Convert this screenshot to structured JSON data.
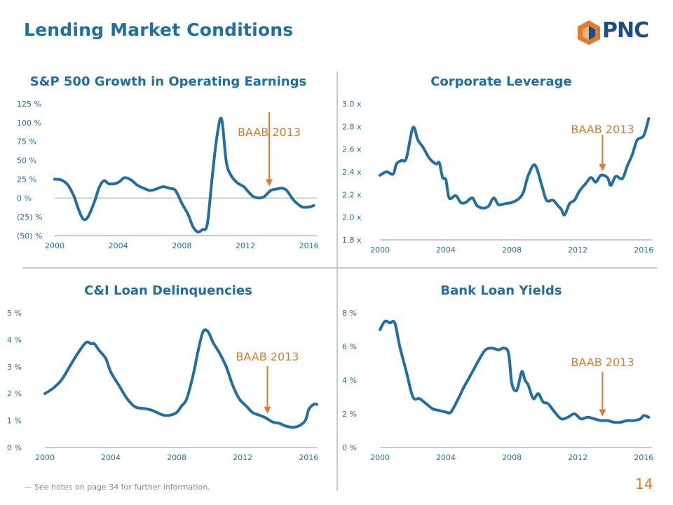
{
  "page": {
    "title": "Lending Market Conditions",
    "logo_text": "PNC",
    "footnote": "See notes on page 34 for further information.",
    "footnote_marker": "—",
    "page_number": "14"
  },
  "colors": {
    "title": "#1f6fa6",
    "line": "#1f6fa6",
    "annotation": "#e07a2c",
    "axis_text": "#1f6fa6"
  },
  "chart_data": [
    {
      "id": "sp500",
      "type": "line",
      "title": "S&P 500 Growth in Operating Earnings",
      "annotation": {
        "label": "BAAB 2013",
        "x": 2013.5
      },
      "x_ticks": [
        2000,
        2004,
        2008,
        2012,
        2016
      ],
      "y_ticks": [
        -50,
        -25,
        0,
        25,
        50,
        75,
        100,
        125
      ],
      "y_tick_labels": [
        "(50) %",
        "(25) %",
        "0 %",
        "25 %",
        "50 %",
        "75 %",
        "100 %",
        "125 %"
      ],
      "xlim": [
        2000,
        2016.5
      ],
      "ylim": [
        -50,
        125
      ],
      "zero_line": true,
      "series": [
        {
          "name": "S&P 500 Growth",
          "points": [
            [
              2000.0,
              25
            ],
            [
              2000.4,
              24
            ],
            [
              2000.8,
              18
            ],
            [
              2001.2,
              3
            ],
            [
              2001.5,
              -15
            ],
            [
              2001.8,
              -28
            ],
            [
              2002.1,
              -25
            ],
            [
              2002.5,
              -5
            ],
            [
              2002.8,
              14
            ],
            [
              2003.1,
              23
            ],
            [
              2003.4,
              19
            ],
            [
              2003.8,
              19
            ],
            [
              2004.1,
              22
            ],
            [
              2004.4,
              27
            ],
            [
              2004.8,
              24
            ],
            [
              2005.2,
              17
            ],
            [
              2005.6,
              13
            ],
            [
              2006.0,
              10
            ],
            [
              2006.4,
              12
            ],
            [
              2006.8,
              15
            ],
            [
              2007.2,
              13
            ],
            [
              2007.6,
              10
            ],
            [
              2008.0,
              -7
            ],
            [
              2008.4,
              -22
            ],
            [
              2008.7,
              -38
            ],
            [
              2009.0,
              -45
            ],
            [
              2009.3,
              -42
            ],
            [
              2009.6,
              -35
            ],
            [
              2009.9,
              25
            ],
            [
              2010.2,
              80
            ],
            [
              2010.5,
              105
            ],
            [
              2010.8,
              48
            ],
            [
              2011.1,
              30
            ],
            [
              2011.5,
              20
            ],
            [
              2011.9,
              15
            ],
            [
              2012.2,
              8
            ],
            [
              2012.5,
              2
            ],
            [
              2012.9,
              0
            ],
            [
              2013.2,
              2
            ],
            [
              2013.6,
              10
            ],
            [
              2014.0,
              12
            ],
            [
              2014.3,
              13
            ],
            [
              2014.6,
              10
            ],
            [
              2015.0,
              -2
            ],
            [
              2015.3,
              -8
            ],
            [
              2015.6,
              -12
            ],
            [
              2016.0,
              -12
            ],
            [
              2016.3,
              -10
            ]
          ]
        }
      ]
    },
    {
      "id": "leverage",
      "type": "line",
      "title": "Corporate Leverage",
      "annotation": {
        "label": "BAAB 2013",
        "x": 2013.5
      },
      "x_ticks": [
        2000,
        2004,
        2008,
        2012,
        2016
      ],
      "y_ticks": [
        1.8,
        2.0,
        2.2,
        2.4,
        2.6,
        2.8,
        3.0
      ],
      "y_tick_labels": [
        "1.8 x",
        "2.0 x",
        "2.2 x",
        "2.4 x",
        "2.6 x",
        "2.8 x",
        "3.0 x"
      ],
      "xlim": [
        2000,
        2016.5
      ],
      "ylim": [
        1.8,
        3.0
      ],
      "zero_line": false,
      "series": [
        {
          "name": "Corporate Leverage",
          "points": [
            [
              2000.0,
              2.37
            ],
            [
              2000.4,
              2.4
            ],
            [
              2000.8,
              2.38
            ],
            [
              2001.0,
              2.47
            ],
            [
              2001.3,
              2.5
            ],
            [
              2001.6,
              2.52
            ],
            [
              2002.0,
              2.79
            ],
            [
              2002.3,
              2.68
            ],
            [
              2002.6,
              2.62
            ],
            [
              2003.0,
              2.52
            ],
            [
              2003.4,
              2.47
            ],
            [
              2003.6,
              2.48
            ],
            [
              2003.8,
              2.35
            ],
            [
              2004.0,
              2.33
            ],
            [
              2004.2,
              2.17
            ],
            [
              2004.6,
              2.19
            ],
            [
              2004.9,
              2.13
            ],
            [
              2005.2,
              2.13
            ],
            [
              2005.6,
              2.17
            ],
            [
              2005.9,
              2.1
            ],
            [
              2006.3,
              2.08
            ],
            [
              2006.6,
              2.1
            ],
            [
              2006.9,
              2.17
            ],
            [
              2007.2,
              2.11
            ],
            [
              2007.6,
              2.12
            ],
            [
              2008.0,
              2.13
            ],
            [
              2008.4,
              2.16
            ],
            [
              2008.7,
              2.22
            ],
            [
              2009.0,
              2.37
            ],
            [
              2009.4,
              2.46
            ],
            [
              2009.8,
              2.29
            ],
            [
              2010.1,
              2.15
            ],
            [
              2010.5,
              2.15
            ],
            [
              2010.8,
              2.1
            ],
            [
              2011.0,
              2.07
            ],
            [
              2011.2,
              2.02
            ],
            [
              2011.5,
              2.12
            ],
            [
              2011.8,
              2.15
            ],
            [
              2012.1,
              2.23
            ],
            [
              2012.5,
              2.3
            ],
            [
              2012.8,
              2.35
            ],
            [
              2013.1,
              2.31
            ],
            [
              2013.4,
              2.37
            ],
            [
              2013.8,
              2.35
            ],
            [
              2014.0,
              2.28
            ],
            [
              2014.3,
              2.36
            ],
            [
              2014.7,
              2.34
            ],
            [
              2015.0,
              2.45
            ],
            [
              2015.3,
              2.55
            ],
            [
              2015.6,
              2.68
            ],
            [
              2016.0,
              2.72
            ],
            [
              2016.3,
              2.87
            ]
          ]
        }
      ]
    },
    {
      "id": "cni",
      "type": "line",
      "title": "C&I Loan Delinquencies",
      "annotation": {
        "label": "BAAB 2013",
        "x": 2013.5
      },
      "x_ticks": [
        2000,
        2004,
        2008,
        2012,
        2016
      ],
      "y_ticks": [
        0,
        1,
        2,
        3,
        4,
        5
      ],
      "y_tick_labels": [
        "0 %",
        "1 %",
        "2 %",
        "3 %",
        "4 %",
        "5 %"
      ],
      "xlim": [
        2000,
        2016.5
      ],
      "ylim": [
        0,
        5
      ],
      "zero_line": false,
      "series": [
        {
          "name": "C&I Loan Delinquencies",
          "points": [
            [
              2000.0,
              2.0
            ],
            [
              2000.5,
              2.2
            ],
            [
              2001.0,
              2.5
            ],
            [
              2001.5,
              3.0
            ],
            [
              2002.0,
              3.5
            ],
            [
              2002.5,
              3.9
            ],
            [
              2002.8,
              3.85
            ],
            [
              2003.0,
              3.85
            ],
            [
              2003.3,
              3.6
            ],
            [
              2003.7,
              3.3
            ],
            [
              2004.0,
              2.8
            ],
            [
              2004.5,
              2.3
            ],
            [
              2005.0,
              1.8
            ],
            [
              2005.5,
              1.5
            ],
            [
              2006.0,
              1.45
            ],
            [
              2006.4,
              1.4
            ],
            [
              2006.8,
              1.3
            ],
            [
              2007.2,
              1.2
            ],
            [
              2007.6,
              1.2
            ],
            [
              2008.0,
              1.3
            ],
            [
              2008.3,
              1.55
            ],
            [
              2008.6,
              1.8
            ],
            [
              2009.0,
              2.7
            ],
            [
              2009.3,
              3.6
            ],
            [
              2009.6,
              4.3
            ],
            [
              2009.9,
              4.3
            ],
            [
              2010.2,
              3.9
            ],
            [
              2010.6,
              3.5
            ],
            [
              2011.0,
              3.0
            ],
            [
              2011.4,
              2.3
            ],
            [
              2011.8,
              1.8
            ],
            [
              2012.2,
              1.55
            ],
            [
              2012.6,
              1.3
            ],
            [
              2013.0,
              1.2
            ],
            [
              2013.4,
              1.1
            ],
            [
              2013.8,
              0.95
            ],
            [
              2014.2,
              0.9
            ],
            [
              2014.6,
              0.8
            ],
            [
              2015.0,
              0.75
            ],
            [
              2015.4,
              0.8
            ],
            [
              2015.8,
              1.0
            ],
            [
              2016.0,
              1.4
            ],
            [
              2016.3,
              1.6
            ],
            [
              2016.5,
              1.6
            ]
          ]
        }
      ]
    },
    {
      "id": "yields",
      "type": "line",
      "title": "Bank Loan Yields",
      "annotation": {
        "label": "BAAB 2013",
        "x": 2013.5
      },
      "x_ticks": [
        2000,
        2004,
        2008,
        2012,
        2016
      ],
      "y_ticks": [
        0,
        2,
        4,
        6,
        8
      ],
      "y_tick_labels": [
        "0 %",
        "2 %",
        "4 %",
        "6 %",
        "8 %"
      ],
      "xlim": [
        2000,
        2016.5
      ],
      "ylim": [
        0,
        8
      ],
      "zero_line": false,
      "series": [
        {
          "name": "Bank Loan Yields",
          "points": [
            [
              2000.0,
              7.0
            ],
            [
              2000.3,
              7.5
            ],
            [
              2000.6,
              7.4
            ],
            [
              2000.9,
              7.4
            ],
            [
              2001.2,
              6.0
            ],
            [
              2001.6,
              4.5
            ],
            [
              2002.0,
              3.0
            ],
            [
              2002.4,
              2.9
            ],
            [
              2002.8,
              2.6
            ],
            [
              2003.2,
              2.3
            ],
            [
              2003.6,
              2.2
            ],
            [
              2004.0,
              2.1
            ],
            [
              2004.3,
              2.1
            ],
            [
              2004.7,
              2.8
            ],
            [
              2005.1,
              3.6
            ],
            [
              2005.5,
              4.3
            ],
            [
              2006.0,
              5.2
            ],
            [
              2006.4,
              5.8
            ],
            [
              2006.8,
              5.9
            ],
            [
              2007.2,
              5.8
            ],
            [
              2007.5,
              5.9
            ],
            [
              2007.8,
              5.6
            ],
            [
              2008.0,
              3.8
            ],
            [
              2008.3,
              3.4
            ],
            [
              2008.6,
              4.5
            ],
            [
              2008.8,
              4.0
            ],
            [
              2009.0,
              3.7
            ],
            [
              2009.3,
              2.9
            ],
            [
              2009.6,
              3.2
            ],
            [
              2009.9,
              2.7
            ],
            [
              2010.2,
              2.6
            ],
            [
              2010.6,
              2.1
            ],
            [
              2011.0,
              1.7
            ],
            [
              2011.4,
              1.8
            ],
            [
              2011.8,
              2.0
            ],
            [
              2012.2,
              1.7
            ],
            [
              2012.6,
              1.8
            ],
            [
              2013.0,
              1.7
            ],
            [
              2013.4,
              1.6
            ],
            [
              2013.8,
              1.6
            ],
            [
              2014.2,
              1.5
            ],
            [
              2014.6,
              1.5
            ],
            [
              2015.0,
              1.6
            ],
            [
              2015.4,
              1.6
            ],
            [
              2015.8,
              1.7
            ],
            [
              2016.0,
              1.9
            ],
            [
              2016.3,
              1.8
            ]
          ]
        }
      ]
    }
  ]
}
